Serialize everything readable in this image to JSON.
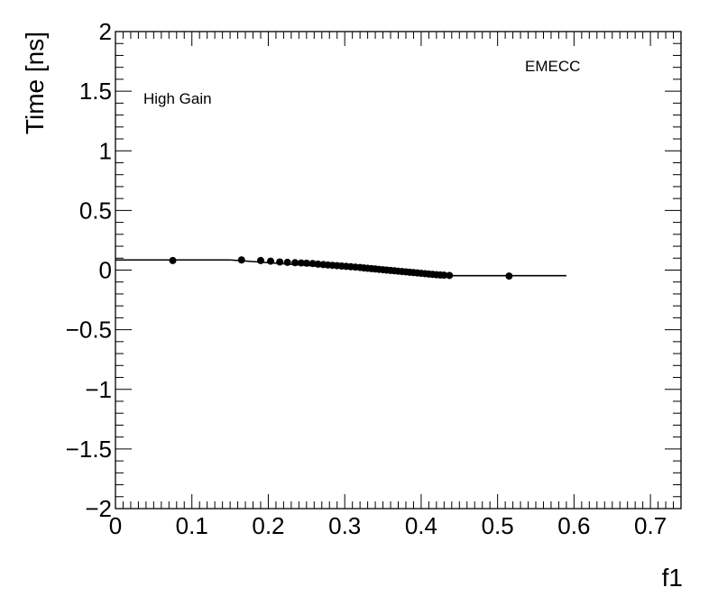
{
  "chart_data": {
    "type": "scatter",
    "title": "",
    "xlabel": "f1",
    "ylabel": "Time [ns]",
    "xlim": [
      0,
      0.74
    ],
    "ylim": [
      -2,
      2
    ],
    "xticks": [
      0,
      0.1,
      0.2,
      0.3,
      0.4,
      0.5,
      0.6,
      0.7
    ],
    "xtick_labels": [
      "0",
      "0.1",
      "0.2",
      "0.3",
      "0.4",
      "0.5",
      "0.6",
      "0.7"
    ],
    "yticks": [
      -2,
      -1.5,
      -1,
      -0.5,
      0,
      0.5,
      1,
      1.5,
      2
    ],
    "ytick_labels": [
      "−2",
      "−1.5",
      "−1",
      "−0.5",
      "0",
      "0.5",
      "1",
      "1.5",
      "2"
    ],
    "grid": false,
    "annotations": [
      "High Gain",
      "EMECC"
    ],
    "series": [
      {
        "x": [
          0.075,
          0.165,
          0.19,
          0.203,
          0.215,
          0.225,
          0.235,
          0.243,
          0.25,
          0.258,
          0.265,
          0.272,
          0.278,
          0.284,
          0.29,
          0.296,
          0.302,
          0.308,
          0.314,
          0.32,
          0.325,
          0.33,
          0.335,
          0.34,
          0.345,
          0.35,
          0.355,
          0.36,
          0.365,
          0.37,
          0.375,
          0.38,
          0.385,
          0.39,
          0.395,
          0.4,
          0.405,
          0.41,
          0.415,
          0.42,
          0.425,
          0.43,
          0.437,
          0.515
        ],
        "y": [
          0.08,
          0.085,
          0.08,
          0.075,
          0.068,
          0.065,
          0.062,
          0.06,
          0.058,
          0.055,
          0.05,
          0.046,
          0.043,
          0.04,
          0.037,
          0.034,
          0.031,
          0.028,
          0.025,
          0.022,
          0.018,
          0.015,
          0.012,
          0.009,
          0.006,
          0.003,
          0.0,
          -0.003,
          -0.006,
          -0.009,
          -0.012,
          -0.015,
          -0.018,
          -0.021,
          -0.024,
          -0.027,
          -0.03,
          -0.033,
          -0.036,
          -0.039,
          -0.041,
          -0.043,
          -0.045,
          -0.05
        ],
        "error_y": 0.005
      }
    ],
    "fit_line": {
      "segments": [
        {
          "x": [
            0.0,
            0.15
          ],
          "y": [
            0.085,
            0.085
          ]
        },
        {
          "x": [
            0.15,
            0.44
          ],
          "y": [
            0.085,
            -0.047
          ]
        },
        {
          "x": [
            0.44,
            0.59
          ],
          "y": [
            -0.047,
            -0.047
          ]
        }
      ]
    }
  }
}
